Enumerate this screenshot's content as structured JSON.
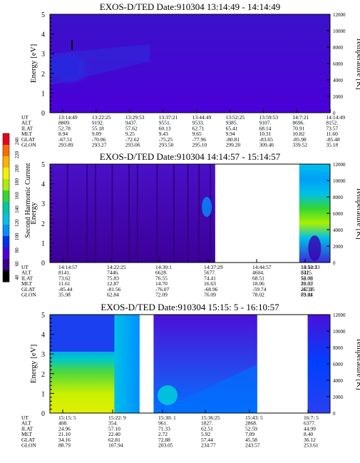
{
  "chart_data": {
    "type": "heatmap",
    "colorbar": {
      "label": "Second Harmonic Current",
      "ticks": [
        "240",
        "220",
        "200",
        "180",
        "160",
        "140",
        "120",
        "100",
        "80",
        "60",
        "40"
      ],
      "colors": [
        "#e8001c",
        "#ff6a00",
        "#ffb300",
        "#f2f200",
        "#a8f000",
        "#33d633",
        "#00c8a0",
        "#00c0e8",
        "#0090ff",
        "#0030f0",
        "#4a00d8",
        "#3a0088",
        "#000000"
      ]
    },
    "panels": [
      {
        "title": "EXOS-D/TED   Date:910304  13:14:49 - 14:14:49",
        "ylabel": "Energy [eV]",
        "y2label": "Temperature [K]",
        "ylim": [
          0,
          5
        ],
        "y_ticks": [
          "0",
          "1",
          "2",
          "3",
          "4",
          "5"
        ],
        "y2lim": [
          0,
          12000
        ],
        "y2_ticks": [
          "0",
          "2000",
          "4000",
          "6000",
          "8000",
          "10000",
          "12000"
        ],
        "data_segments": [
          [
            0,
            1
          ]
        ],
        "table": {
          "labels": [
            "UT",
            "ALT",
            "ILAT",
            "MLT",
            "GLAT",
            "GLON"
          ],
          "columns": [
            [
              "13:14:49",
              "8809.",
              "52.78",
              "8.94",
              "-67.51",
              "293.89"
            ],
            [
              "13:22:25",
              "9192.",
              "55.18",
              "9.09",
              "-70.06",
              "293.27"
            ],
            [
              "13:29:53",
              "9437.",
              "57.62",
              "9.25",
              "-72.62",
              "293.06"
            ],
            [
              "13:37:21",
              "9551.",
              "60.13",
              "9.43",
              "-75.25",
              "293.50"
            ],
            [
              "13:44:49",
              "9533.",
              "62.71",
              "9.65",
              "-77.96",
              "295.10"
            ],
            [
              "13:52:25",
              "9385.",
              "65.41",
              "9.94",
              "-80.81",
              "299.20"
            ],
            [
              "13:59:53",
              "9107.",
              "68.14",
              "10.31",
              "-83.65",
              "309.46"
            ],
            [
              "14:7:21",
              "8696.",
              "70.91",
              "10.82",
              "-85.98",
              "339.52"
            ],
            [
              "14:14:49",
              "8152.",
              "73.57",
              "11.60",
              "-85.48",
              "35.18"
            ]
          ]
        }
      },
      {
        "title": "EXOS-D/TED   Date:910304  14:14:57 - 15:14:57",
        "ylabel": "Energy",
        "y2label": "Temperature [K]",
        "ylim": [
          0,
          5
        ],
        "y_ticks": [
          "0",
          "1",
          "2",
          "3",
          "4",
          "5"
        ],
        "y2lim": [
          0,
          12000
        ],
        "y2_ticks": [
          "0",
          "2000",
          "4000",
          "6000",
          "8000",
          "10000",
          "12000"
        ],
        "data_segments": [
          [
            0,
            0.59
          ],
          [
            0.89,
            1
          ]
        ],
        "table": {
          "labels": [
            "UT",
            "ALT",
            "ILAT",
            "MLT",
            "GLAT",
            "GLON"
          ],
          "columns": [
            [
              "14:14:57",
              "8141.",
              "73.62",
              "11.61",
              "-85.44",
              "35.98"
            ],
            [
              "14:22:25",
              "7446.",
              "75.83",
              "12.87",
              "-81.56",
              "62.84"
            ],
            [
              "14:30:1",
              "6628.",
              "76.55",
              "14.70",
              "-76.07",
              "72.09"
            ],
            [
              "14:37:29",
              "5677.",
              "74.41",
              "16.63",
              "-68.96",
              "76.09"
            ],
            [
              "14:44:57",
              "4604.",
              "68.51",
              "18.06",
              "-59.74",
              "78.02"
            ],
            [
              "14:52:33",
              "3415.",
              "58.06",
              "19.03",
              "-47.35",
              "79.11"
            ],
            [
              "15:10:1",
              "832.",
              "12.02",
              "20.57",
              "25.32",
              "83.04"
            ]
          ]
        }
      },
      {
        "title": "EXOS-D/TED   Date:910304  15:15: 5 - 16:10:57",
        "ylabel": "Energy [eV]",
        "y2label": "Temperature [K]",
        "ylim": [
          0,
          5
        ],
        "y_ticks": [
          "0",
          "1",
          "2",
          "3",
          "4",
          "5"
        ],
        "y2lim": [
          0,
          12000
        ],
        "y2_ticks": [
          "0",
          "2000",
          "4000",
          "6000",
          "8000",
          "10000",
          "12000"
        ],
        "data_segments": [
          [
            0,
            0.32
          ],
          [
            0.37,
            0.74
          ],
          [
            0.92,
            1
          ]
        ],
        "table": {
          "labels": [
            "UT",
            "ALT",
            "ILAT",
            "MLT",
            "GLAT",
            "GLON"
          ],
          "columns": [
            [
              "15:15: 5",
              "408.",
              "24.96",
              "21.10",
              "34.16",
              "88.79"
            ],
            [
              "15:22: 9",
              "354.",
              "57.10",
              "22.40",
              "62.81",
              "107.94"
            ],
            [
              "15:30: 1",
              "961.",
              "71.33",
              "2.72",
              "72.88",
              "203.05"
            ],
            [
              "15:36:25",
              "1827.",
              "62.51",
              "5.92",
              "57.44",
              "234.77"
            ],
            [
              "15:43: 5",
              "2868.",
              "52.59",
              "7.09",
              "45.58",
              "243.57"
            ],
            [
              "16:7: 5",
              "6377.",
              "44.99",
              "8.40",
              "36.12",
              "253.61"
            ]
          ]
        }
      }
    ]
  }
}
